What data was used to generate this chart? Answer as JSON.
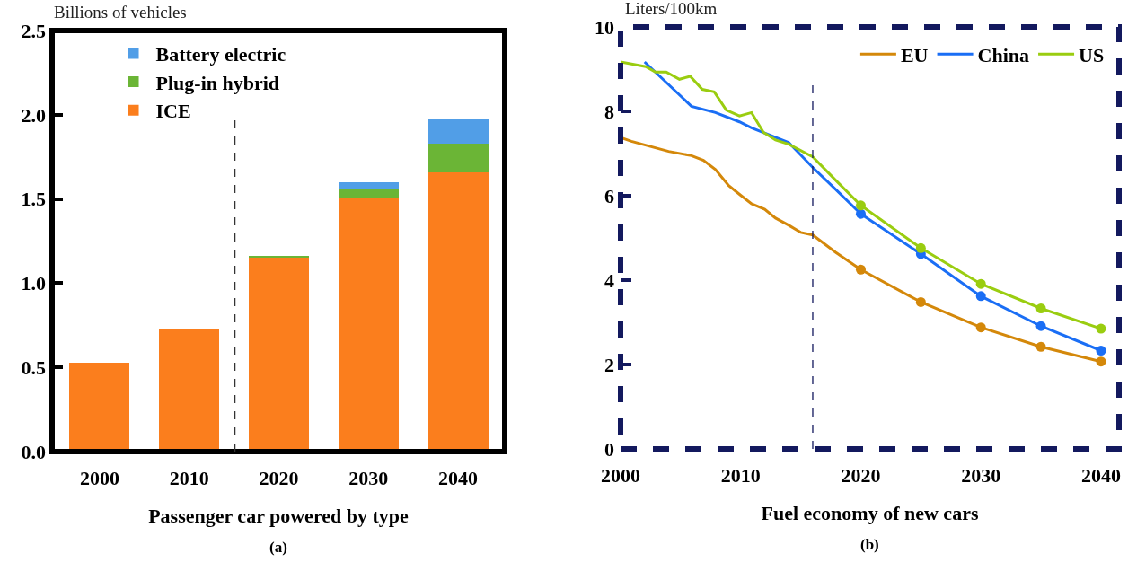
{
  "chart_data": [
    {
      "type": "bar",
      "stacked": true,
      "ylabel": "Billions of vehicles",
      "xlabel": "Passenger car powered by type",
      "annotations": [
        "(a)"
      ],
      "x": [
        2000,
        2010,
        2020,
        2030,
        2040
      ],
      "xlim": [
        1994.7,
        2045.2
      ],
      "xticks": [
        2000,
        2010,
        2020,
        2030,
        2040
      ],
      "ylim": [
        0,
        2.5
      ],
      "yticks": [
        {
          "value": 0,
          "label": "0.0"
        },
        0.5,
        {
          "value": 1,
          "label": "1.0"
        },
        1.5,
        {
          "value": 2,
          "label": "2.0"
        },
        2.5
      ],
      "legend": "top left",
      "grid": false,
      "ref_lines": [
        {
          "axis": "x",
          "value": 2015.1,
          "color": "#333333",
          "line_style": "dashed"
        }
      ],
      "series": [
        {
          "name": "ICE",
          "color": "#fb7e1d",
          "values": [
            0.53,
            0.73,
            1.15,
            1.51,
            1.66
          ]
        },
        {
          "name": "Plug-in hybrid",
          "color": "#6bb536",
          "values": [
            0,
            0,
            0.01,
            0.05,
            0.17
          ]
        },
        {
          "name": "Battery electric",
          "color": "#519ee7",
          "values": [
            0,
            0,
            0,
            0.04,
            0.15
          ]
        }
      ]
    },
    {
      "type": "line",
      "ylabel": "Liters/100km",
      "xlabel": "Fuel economy of new cars",
      "annotations": [
        "(b)"
      ],
      "xlim": [
        2000,
        2041.5
      ],
      "xticks": [
        2000,
        2010,
        2020,
        2030,
        2040
      ],
      "ylim": [
        0,
        10
      ],
      "yticks": [
        0,
        2,
        4,
        6,
        8,
        10
      ],
      "legend": "top right",
      "grid": false,
      "ref_lines": [
        {
          "axis": "x",
          "value": 2016,
          "color": "#13195e",
          "line_style": "dashed"
        }
      ],
      "series": [
        {
          "name": "EU",
          "color": "#d4880a",
          "marker": "none",
          "x": [
            2000,
            2000.9,
            2004,
            2005.9,
            2006.9,
            2007.9,
            2009,
            2010,
            2010.9,
            2012,
            2012.9,
            2014,
            2015,
            2016,
            2017.9,
            2020
          ],
          "values": [
            7.38,
            7.29,
            7.05,
            6.95,
            6.84,
            6.62,
            6.24,
            6.01,
            5.81,
            5.68,
            5.47,
            5.3,
            5.13,
            5.07,
            4.66,
            4.25
          ]
        },
        {
          "name": "China",
          "color": "#1a6ef5",
          "marker": "none",
          "x": [
            2002,
            2005.9,
            2007.9,
            2009.9,
            2010.9,
            2014,
            2016,
            2017.9,
            2020
          ],
          "values": [
            9.17,
            8.12,
            7.97,
            7.75,
            7.61,
            7.26,
            6.67,
            6.15,
            5.57
          ]
        },
        {
          "name": "US",
          "color": "#9acd10",
          "marker": "none",
          "x": [
            2000,
            2002.1,
            2002.9,
            2003.8,
            2004.9,
            2005.8,
            2006.8,
            2007.8,
            2008.8,
            2009.9,
            2010.9,
            2011.9,
            2012.9,
            2014,
            2016,
            2017.9,
            2020
          ],
          "values": [
            9.17,
            9.06,
            8.93,
            8.93,
            8.76,
            8.83,
            8.52,
            8.46,
            8.03,
            7.89,
            7.97,
            7.5,
            7.32,
            7.22,
            6.92,
            6.37,
            5.77
          ]
        },
        {
          "color": "#d4880a",
          "marker": "circle",
          "x": [
            2020,
            2025,
            2030,
            2035,
            2040
          ],
          "values": [
            4.25,
            3.48,
            2.88,
            2.42,
            2.07
          ]
        },
        {
          "color": "#1a6ef5",
          "marker": "circle",
          "x": [
            2020,
            2025,
            2030,
            2035,
            2040
          ],
          "values": [
            5.57,
            4.62,
            3.62,
            2.91,
            2.33
          ]
        },
        {
          "color": "#9acd10",
          "marker": "circle",
          "x": [
            2020,
            2025,
            2030,
            2035,
            2040
          ],
          "values": [
            5.77,
            4.76,
            3.91,
            3.33,
            2.85
          ]
        }
      ]
    }
  ]
}
